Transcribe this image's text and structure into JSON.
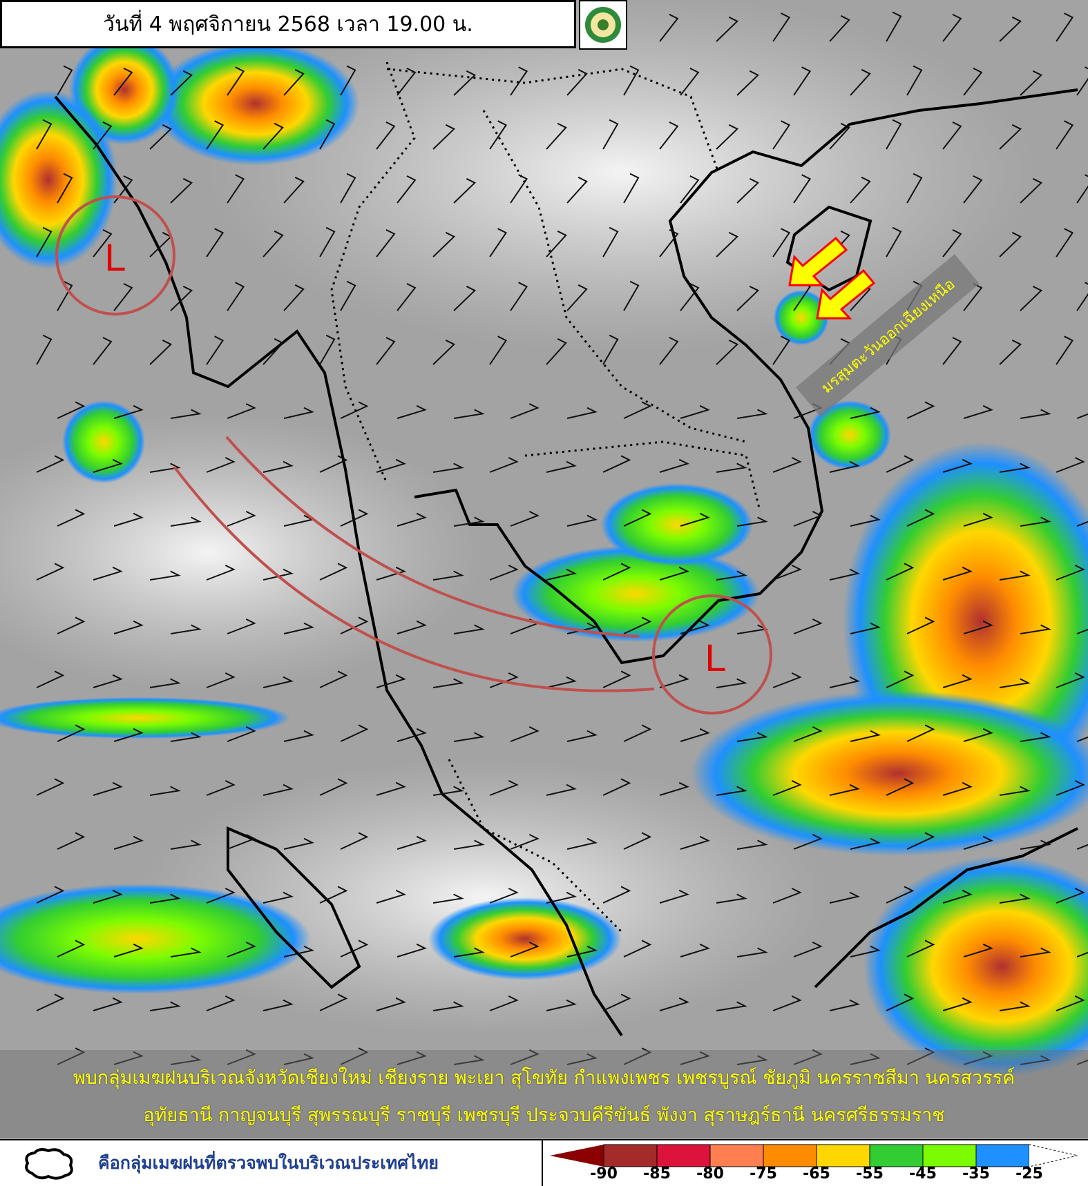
{
  "header": {
    "title": "วันที่ 4 พฤศจิกายน 2568 เวลา 19.00 น.",
    "logo": "กรมอุตุนิยมวิทยา"
  },
  "map": {
    "low_pressure_label": "L",
    "monsoon_label": "มรสุมตะวันออกเฉียงเหนือ",
    "annotation_color": "#c0504d",
    "arrow_fill": "#ffff00",
    "arrow_stroke": "#ff0000"
  },
  "banner": {
    "line1": "พบกลุ่มเมฆฝนบริเวณจังหวัดเชียงใหม่ เชียงราย พะเยา สุโขทัย กำแพงเพชร เพชรบูรณ์ ชัยภูมิ นครราชสีมา นครสวรรค์",
    "line2": "อุทัยธานี กาญจนบุรี สุพรรณบุรี ราชบุรี เพชรบุรี ประจวบคีรีขันธ์ พังงา สุราษฎร์ธานี นครศรีธรรมราช"
  },
  "legend": {
    "cloud_icon": "cloud-outline-icon",
    "description": "คือกลุ่มเมฆฝนที่ตรวจพบในบริเวณประเทศไทย",
    "colors": [
      "#8b0000",
      "#a52a2a",
      "#dc143c",
      "#ff7f50",
      "#ff8c00",
      "#ffd700",
      "#32cd32",
      "#7cfc00",
      "#1e90ff",
      "#ffffff"
    ],
    "ticks": [
      "-90",
      "-85",
      "-80",
      "-75",
      "-65",
      "-55",
      "-45",
      "-35",
      "-25"
    ]
  }
}
